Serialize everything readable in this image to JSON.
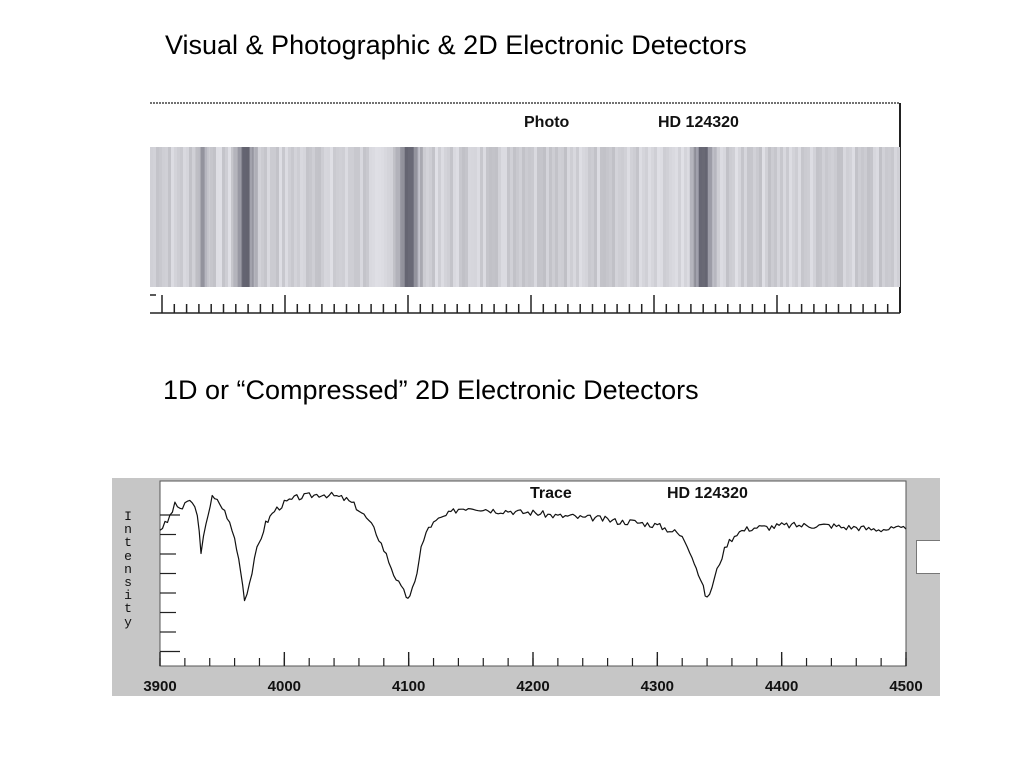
{
  "titles": {
    "top": "Visual & Photographic & 2D Electronic Detectors",
    "bottom": "1D or “Compressed” 2D Electronic Detectors"
  },
  "photo_panel": {
    "mode_label": "Photo",
    "star_label": "HD 124320",
    "x_range": [
      3900,
      4500
    ],
    "absorption_lines": [
      {
        "x": 3933,
        "depth": 0.35,
        "width": 5
      },
      {
        "x": 3968,
        "depth": 0.8,
        "width": 9
      },
      {
        "x": 4101,
        "depth": 0.8,
        "width": 10
      },
      {
        "x": 4340,
        "depth": 0.8,
        "width": 10
      }
    ]
  },
  "chart_data": {
    "type": "line",
    "title": "",
    "panel_label": "Trace",
    "star_label": "HD 124320",
    "xlabel": "",
    "ylabel": "Intensity",
    "xlim": [
      3900,
      4500
    ],
    "ylim": [
      0,
      1
    ],
    "x_ticks": [
      3900,
      4000,
      4100,
      4200,
      4300,
      4400,
      4500
    ],
    "grid": false,
    "series": [
      {
        "name": "",
        "x": [
          3900,
          3906,
          3912,
          3918,
          3924,
          3930,
          3933,
          3937,
          3942,
          3948,
          3954,
          3960,
          3965,
          3968,
          3972,
          3978,
          3985,
          3992,
          4000,
          4010,
          4020,
          4030,
          4040,
          4050,
          4058,
          4066,
          4074,
          4082,
          4088,
          4094,
          4098,
          4101,
          4105,
          4110,
          4116,
          4124,
          4132,
          4140,
          4150,
          4160,
          4170,
          4180,
          4190,
          4200,
          4210,
          4220,
          4230,
          4240,
          4250,
          4260,
          4270,
          4280,
          4290,
          4300,
          4308,
          4316,
          4322,
          4328,
          4333,
          4337,
          4340,
          4344,
          4350,
          4356,
          4364,
          4372,
          4380,
          4390,
          4400,
          4410,
          4420,
          4430,
          4440,
          4450,
          4460,
          4470,
          4480,
          4490,
          4500
        ],
        "values": [
          0.74,
          0.78,
          0.87,
          0.85,
          0.9,
          0.83,
          0.6,
          0.78,
          0.91,
          0.88,
          0.81,
          0.69,
          0.52,
          0.36,
          0.45,
          0.63,
          0.77,
          0.84,
          0.88,
          0.91,
          0.92,
          0.93,
          0.92,
          0.9,
          0.86,
          0.8,
          0.72,
          0.6,
          0.5,
          0.42,
          0.38,
          0.37,
          0.45,
          0.64,
          0.75,
          0.79,
          0.82,
          0.85,
          0.86,
          0.85,
          0.84,
          0.84,
          0.83,
          0.83,
          0.82,
          0.81,
          0.81,
          0.8,
          0.8,
          0.79,
          0.78,
          0.78,
          0.77,
          0.76,
          0.74,
          0.72,
          0.68,
          0.6,
          0.5,
          0.42,
          0.36,
          0.43,
          0.56,
          0.66,
          0.72,
          0.74,
          0.75,
          0.75,
          0.76,
          0.76,
          0.76,
          0.76,
          0.76,
          0.75,
          0.75,
          0.74,
          0.74,
          0.74,
          0.74
        ]
      }
    ]
  }
}
